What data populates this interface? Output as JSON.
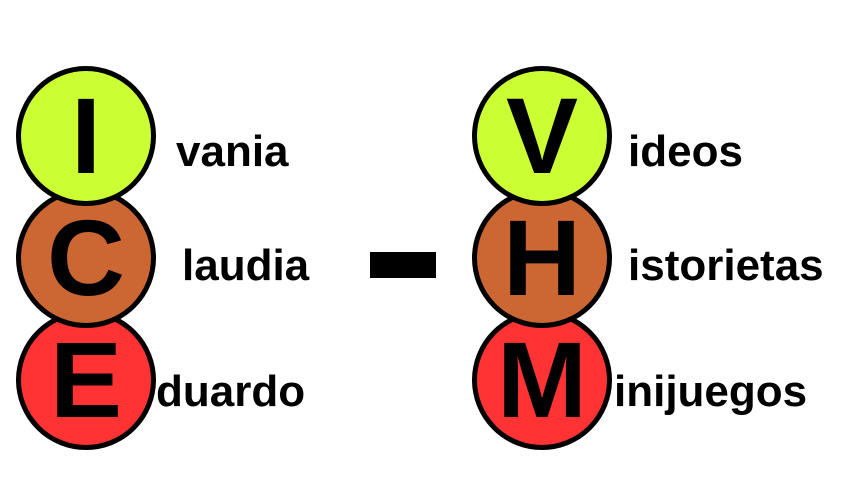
{
  "colors": {
    "lime": "#ccff33",
    "orange": "#cc6633",
    "red": "#ff3333"
  },
  "left": [
    {
      "letter": "I",
      "rest": "vania"
    },
    {
      "letter": "C",
      "rest": "laudia"
    },
    {
      "letter": "E",
      "rest": "duardo"
    }
  ],
  "right": [
    {
      "letter": "V",
      "rest": "ideos"
    },
    {
      "letter": "H",
      "rest": "istorietas"
    },
    {
      "letter": "M",
      "rest": "inijuegos"
    }
  ]
}
